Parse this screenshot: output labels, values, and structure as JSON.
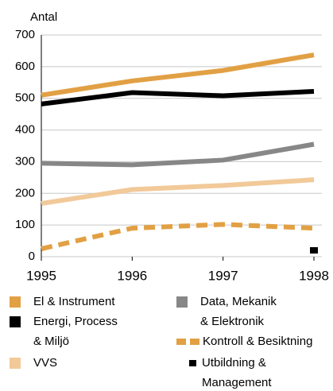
{
  "chart_data": {
    "type": "line",
    "ylabel": "Antal",
    "x": [
      1995,
      1996,
      1997,
      1998
    ],
    "xlim": [
      1995,
      1998
    ],
    "xticks": [
      1995,
      1996,
      1997,
      1998
    ],
    "ylim": [
      0,
      700
    ],
    "yticks": [
      0,
      100,
      200,
      300,
      400,
      500,
      600,
      700
    ],
    "grid": true,
    "series": [
      {
        "name": "El & Instrument",
        "color": "#e2a044",
        "style": "solid",
        "values": [
          510,
          555,
          588,
          637
        ]
      },
      {
        "name": "Energi, Process\n& Miljö",
        "color": "#000000",
        "style": "solid",
        "values": [
          482,
          518,
          508,
          522
        ]
      },
      {
        "name": "VVS",
        "color": "#f2c999",
        "style": "solid",
        "values": [
          168,
          212,
          225,
          243
        ]
      },
      {
        "name": "Data, Mekanik\n& Elektronik",
        "color": "#878787",
        "style": "solid",
        "values": [
          295,
          290,
          305,
          355
        ]
      },
      {
        "name": "Kontroll & Besiktning",
        "color": "#e2a044",
        "style": "dashed",
        "values": [
          25,
          90,
          102,
          90
        ]
      },
      {
        "name": "Utbildning &\nManagement",
        "color": "#000000",
        "style": "point",
        "values": [
          null,
          null,
          null,
          20
        ]
      }
    ]
  }
}
